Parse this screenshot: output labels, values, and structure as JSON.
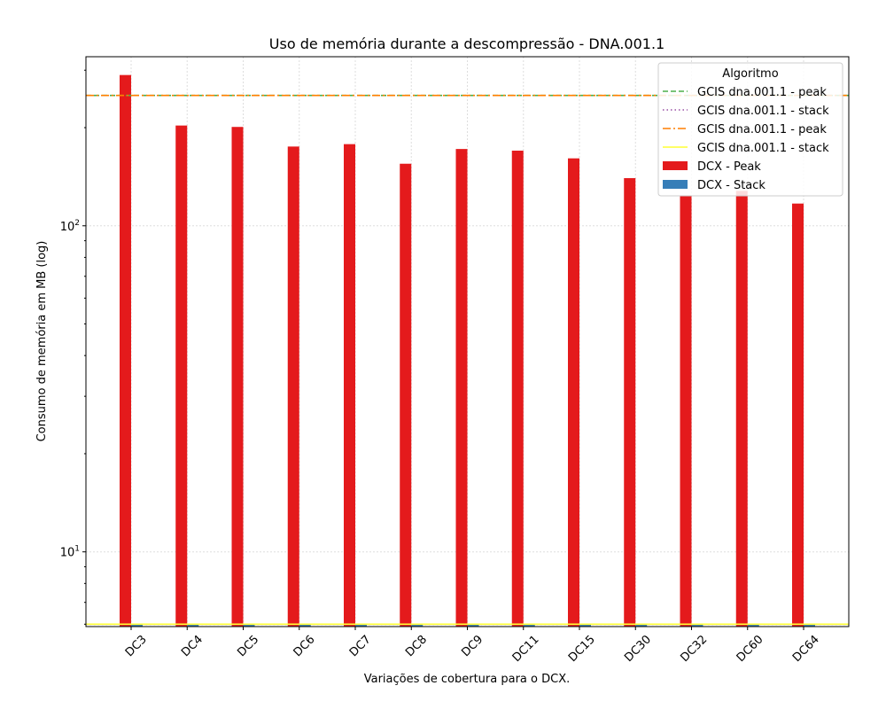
{
  "chart_data": {
    "type": "bar",
    "title": "Uso de memória durante a descompressão -  DNA.001.1",
    "xlabel": "Variações de cobertura para o DCX.",
    "ylabel": "Consumo de memória em MB (log)",
    "yscale": "log",
    "ylim": [
      5.9,
      330
    ],
    "y_tick_labels": [
      "10^1",
      "10^2"
    ],
    "grid": true,
    "categories": [
      "DC3",
      "DC4",
      "DC5",
      "DC6",
      "DC7",
      "DC8",
      "DC9",
      "DC11",
      "DC15",
      "DC30",
      "DC32",
      "DC60",
      "DC64"
    ],
    "series": [
      {
        "name": "DCX - Peak",
        "color": "#e41a1c",
        "values": [
          290,
          203,
          201,
          175,
          178,
          155,
          172,
          170,
          161,
          140,
          124,
          128,
          117
        ]
      },
      {
        "name": "DCX - Stack",
        "color": "#377eb8",
        "values": [
          6.0,
          6.0,
          6.0,
          6.0,
          6.0,
          6.0,
          6.0,
          6.0,
          6.0,
          6.0,
          6.0,
          6.0,
          6.0
        ]
      }
    ],
    "reference_lines": [
      {
        "name": "GCIS dna.001.1 - peak",
        "value": 251,
        "color": "#4daf4a",
        "style": "dashed"
      },
      {
        "name": "GCIS dna.001.1 - stack",
        "value": 6.0,
        "color": "#984ea3",
        "style": "dotted"
      },
      {
        "name": "GCIS dna.001.1 - peak",
        "value": 251,
        "color": "#ff7f00",
        "style": "dashdot"
      },
      {
        "name": "GCIS dna.001.1 - stack",
        "value": 6.0,
        "color": "#ffff33",
        "style": "solid"
      }
    ],
    "legend": {
      "title": "Algoritmo",
      "position": "top-right"
    }
  }
}
